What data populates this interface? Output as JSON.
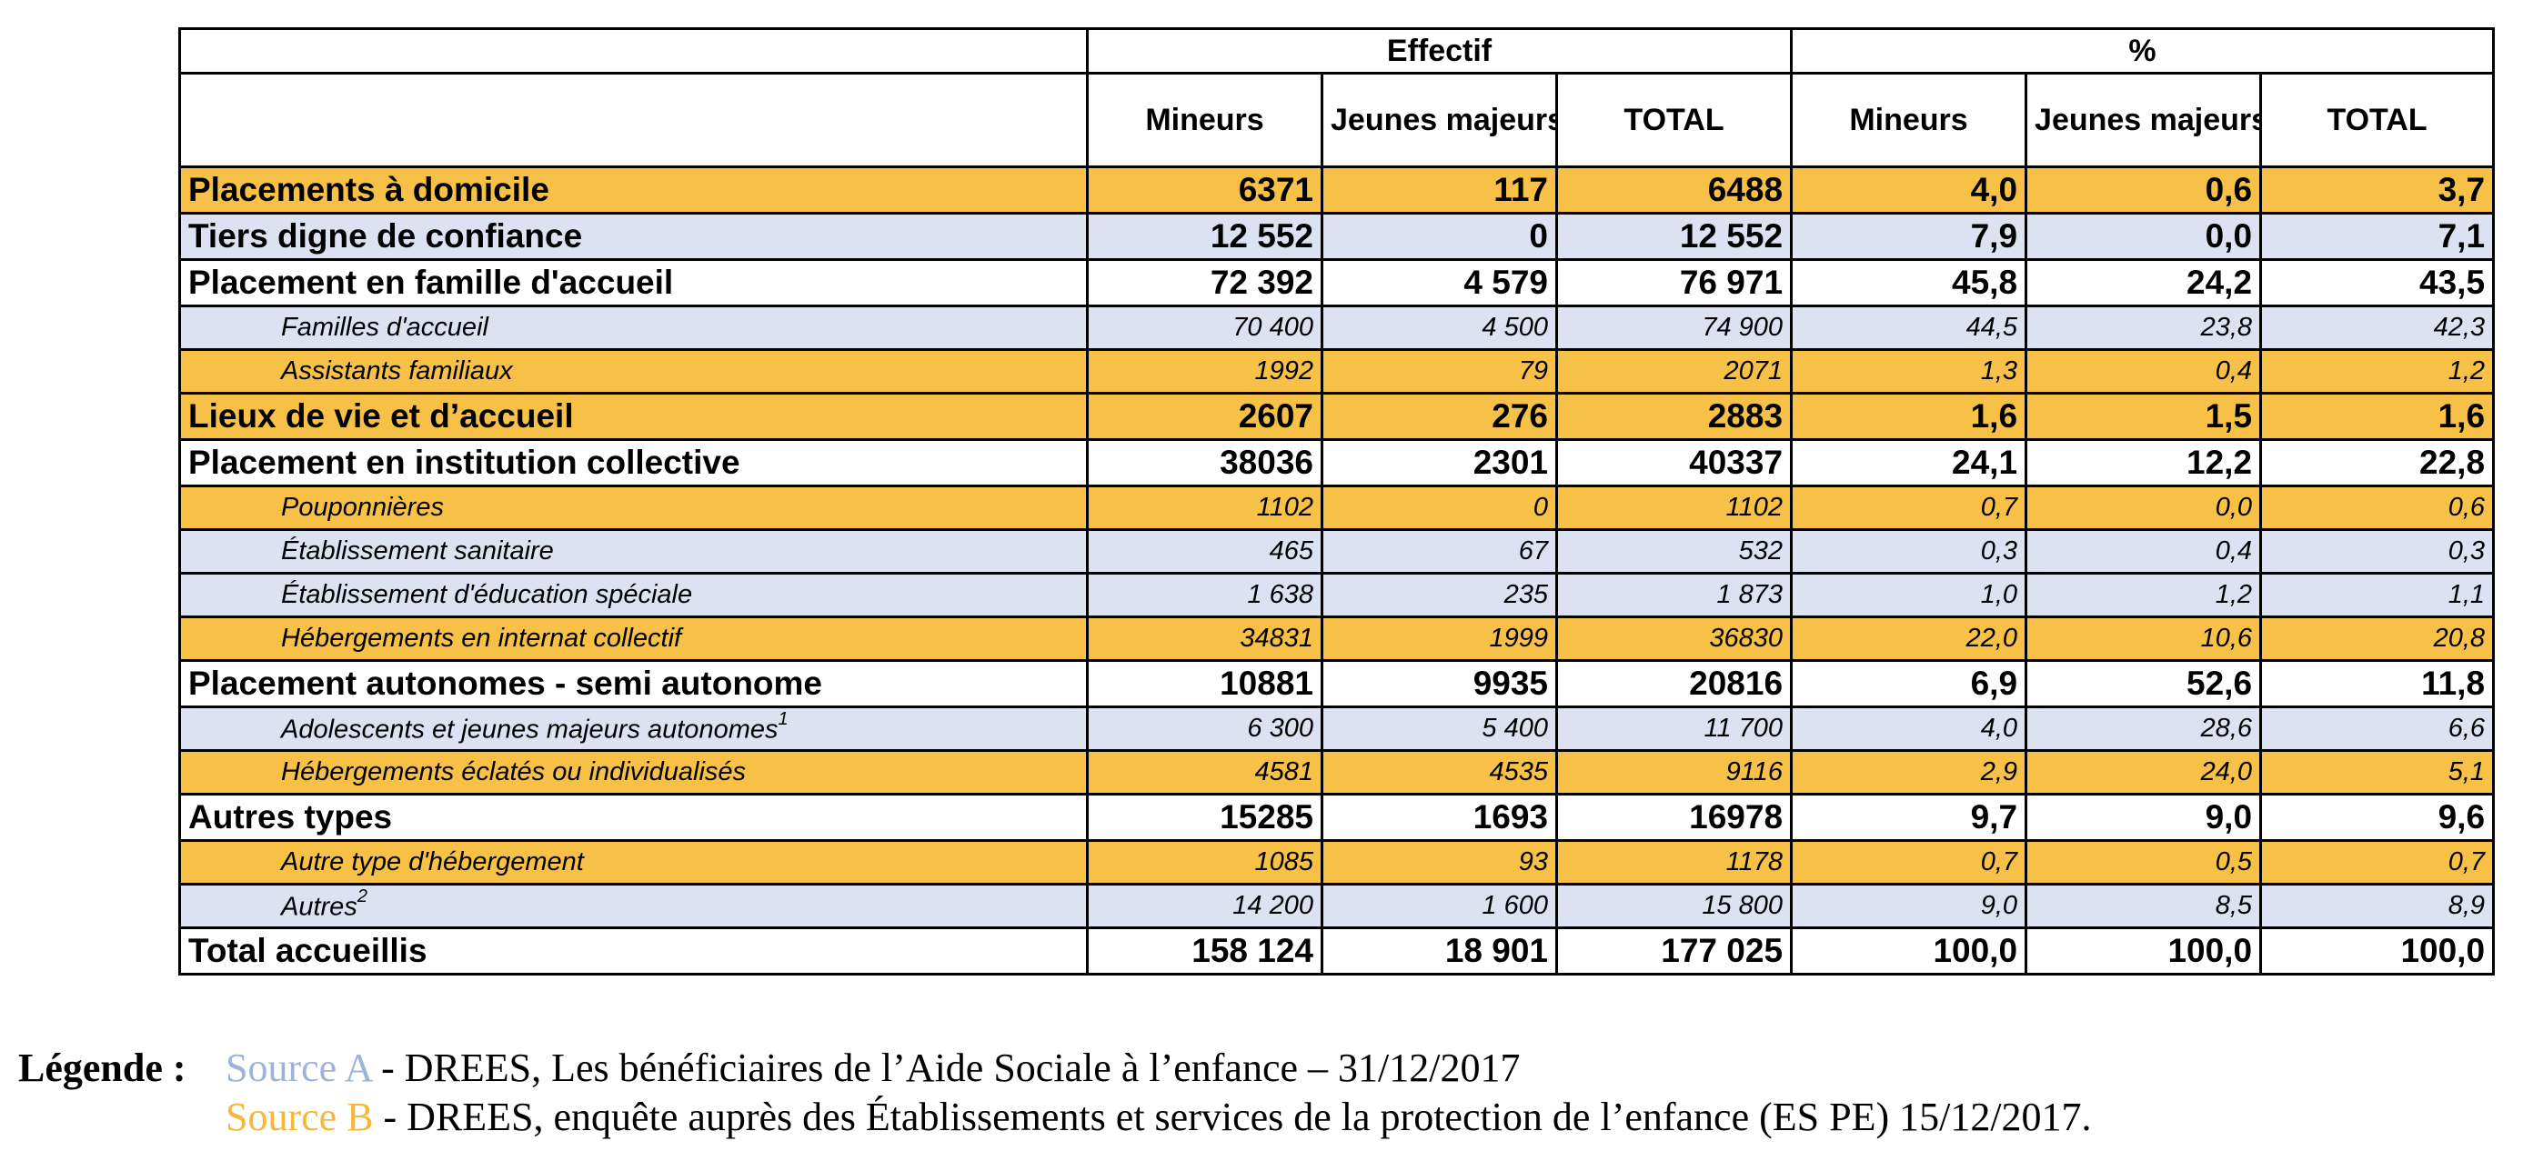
{
  "table": {
    "groups": [
      {
        "label": "Effectif"
      },
      {
        "label": "%"
      }
    ],
    "columns": [
      "Mineurs",
      "Jeunes majeurs",
      "TOTAL",
      "Mineurs",
      "Jeunes majeurs",
      "TOTAL"
    ],
    "rows": [
      {
        "label": "Placements à domicile",
        "sup": "",
        "cells": [
          "6371",
          "117",
          "6488",
          "4,0",
          "0,6",
          "3,7"
        ]
      },
      {
        "label": "Tiers digne de confiance",
        "sup": "",
        "cells": [
          "12 552",
          "0",
          "12 552",
          "7,9",
          "0,0",
          "7,1"
        ]
      },
      {
        "label": "Placement en famille d'accueil",
        "sup": "",
        "cells": [
          "72 392",
          "4 579",
          "76 971",
          "45,8",
          "24,2",
          "43,5"
        ]
      },
      {
        "label": "Familles d'accueil",
        "sup": "",
        "cells": [
          "70 400",
          "4 500",
          "74 900",
          "44,5",
          "23,8",
          "42,3"
        ]
      },
      {
        "label": "Assistants familiaux",
        "sup": "",
        "cells": [
          "1992",
          "79",
          "2071",
          "1,3",
          "0,4",
          "1,2"
        ]
      },
      {
        "label": "Lieux de vie et d’accueil",
        "sup": "",
        "cells": [
          "2607",
          "276",
          "2883",
          "1,6",
          "1,5",
          "1,6"
        ]
      },
      {
        "label": "Placement en institution collective",
        "sup": "",
        "cells": [
          "38036",
          "2301",
          "40337",
          "24,1",
          "12,2",
          "22,8"
        ]
      },
      {
        "label": "Pouponnières",
        "sup": "",
        "cells": [
          "1102",
          "0",
          "1102",
          "0,7",
          "0,0",
          "0,6"
        ]
      },
      {
        "label": "Établissement sanitaire",
        "sup": "",
        "cells": [
          "465",
          "67",
          "532",
          "0,3",
          "0,4",
          "0,3"
        ]
      },
      {
        "label": "Établissement d'éducation spéciale",
        "sup": "",
        "cells": [
          "1 638",
          "235",
          "1 873",
          "1,0",
          "1,2",
          "1,1"
        ]
      },
      {
        "label": "Hébergements en internat collectif",
        "sup": "",
        "cells": [
          "34831",
          "1999",
          "36830",
          "22,0",
          "10,6",
          "20,8"
        ]
      },
      {
        "label": "Placement autonomes - semi autonome",
        "sup": "",
        "cells": [
          "10881",
          "9935",
          "20816",
          "6,9",
          "52,6",
          "11,8"
        ]
      },
      {
        "label": "Adolescents et jeunes majeurs autonomes",
        "sup": "1",
        "cells": [
          "6 300",
          "5 400",
          "11 700",
          "4,0",
          "28,6",
          "6,6"
        ]
      },
      {
        "label": "Hébergements éclatés ou individualisés",
        "sup": "",
        "cells": [
          "4581",
          "4535",
          "9116",
          "2,9",
          "24,0",
          "5,1"
        ]
      },
      {
        "label": "Autres types",
        "sup": "",
        "cells": [
          "15285",
          "1693",
          "16978",
          "9,7",
          "9,0",
          "9,6"
        ]
      },
      {
        "label": "Autre type d'hébergement",
        "sup": "",
        "cells": [
          "1085",
          "93",
          "1178",
          "0,7",
          "0,5",
          "0,7"
        ]
      },
      {
        "label": "Autres",
        "sup": "2",
        "cells": [
          "14 200",
          "1 600",
          "15 800",
          "9,0",
          "8,5",
          "8,9"
        ]
      },
      {
        "label": "Total accueillis",
        "sup": "",
        "cells": [
          "158 124",
          "18 901",
          "177 025",
          "100,0",
          "100,0",
          "100,0"
        ]
      }
    ]
  },
  "legend": {
    "label": "Légende :",
    "source_a_label": "Source A",
    "source_a_text": " - DREES, Les bénéficiaires de l’Aide Sociale à l’enfance – 31/12/2017",
    "source_b_label": "Source B",
    "source_b_text": " - DREES, enquête auprès des Établissements et services de la protection de l’enfance (ES PE) 15/12/2017."
  },
  "colors": {
    "source_a": "#9fb3d9",
    "source_b": "#f5b83c",
    "row_orange": "#f7c046",
    "row_blue": "#dce2f2"
  }
}
